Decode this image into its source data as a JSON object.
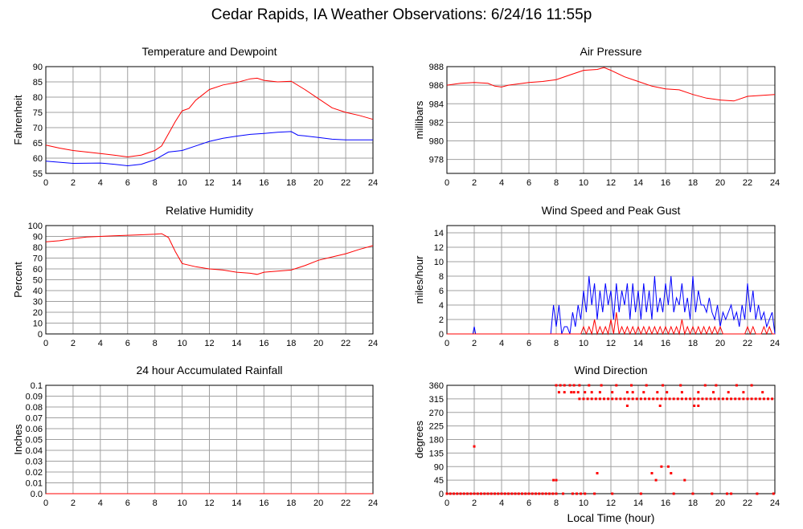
{
  "title": "Cedar Rapids, IA Weather Observations: 6/24/16 11:55p",
  "colors": {
    "red": "#ff0000",
    "blue": "#0000ff",
    "grid": "#a0a0a0"
  },
  "chart_data": [
    {
      "id": "temp",
      "type": "line",
      "title": "Temperature and Dewpoint",
      "xlabel": "",
      "ylabel": "Fahrenheit",
      "xlim": [
        0,
        24
      ],
      "ylim": [
        55,
        90
      ],
      "xticks": [
        0,
        2,
        4,
        6,
        8,
        10,
        12,
        14,
        16,
        18,
        20,
        22,
        24
      ],
      "yticks": [
        55,
        60,
        65,
        70,
        75,
        80,
        85,
        90
      ],
      "series": [
        {
          "color": "#ff0000",
          "x": [
            0,
            1,
            2,
            3,
            4,
            5,
            6,
            7,
            8,
            8.5,
            9,
            9.5,
            10,
            10.5,
            11,
            12,
            13,
            14,
            15,
            15.5,
            16,
            17,
            18,
            19,
            20,
            21,
            22,
            23,
            24
          ],
          "y": [
            64.3,
            63.3,
            62.5,
            62,
            61.5,
            61,
            60.4,
            61,
            62.5,
            64,
            68,
            72,
            75.5,
            76.3,
            79,
            82.5,
            84,
            84.8,
            86,
            86.2,
            85.5,
            85,
            85.2,
            82.5,
            79.5,
            76.5,
            75,
            74,
            72.7
          ]
        },
        {
          "color": "#0000ff",
          "x": [
            0,
            2,
            4,
            5,
            6,
            7,
            8,
            9,
            10,
            11,
            12,
            13,
            14,
            15,
            16,
            17,
            18,
            18.5,
            19,
            20,
            21,
            22,
            23,
            24
          ],
          "y": [
            59,
            58.3,
            58.4,
            58,
            57.5,
            58,
            59.5,
            62,
            62.5,
            64,
            65.5,
            66.5,
            67.2,
            67.8,
            68.1,
            68.5,
            68.7,
            67.5,
            67.3,
            66.8,
            66.2,
            66,
            66,
            66
          ]
        }
      ]
    },
    {
      "id": "pressure",
      "type": "line",
      "title": "Air Pressure",
      "xlabel": "",
      "ylabel": "millibars",
      "xlim": [
        0,
        24
      ],
      "ylim": [
        976.5,
        988
      ],
      "xticks": [
        0,
        2,
        4,
        6,
        8,
        10,
        12,
        14,
        16,
        18,
        20,
        22,
        24
      ],
      "yticks": [
        978,
        980,
        982,
        984,
        986,
        988
      ],
      "series": [
        {
          "color": "#ff0000",
          "x": [
            0,
            1,
            2,
            3,
            3.5,
            4,
            4.5,
            5,
            6,
            7,
            8,
            9,
            10,
            11,
            11.5,
            12,
            13,
            14,
            15,
            16,
            17,
            18,
            19,
            20,
            21,
            22,
            23,
            24
          ],
          "y": [
            986,
            986.2,
            986.3,
            986.2,
            985.9,
            985.8,
            986,
            986.1,
            986.3,
            986.4,
            986.6,
            987.1,
            987.6,
            987.7,
            987.9,
            987.6,
            986.9,
            986.4,
            985.9,
            985.6,
            985.5,
            985,
            984.6,
            984.4,
            984.3,
            984.8,
            984.9,
            985
          ]
        }
      ]
    },
    {
      "id": "humidity",
      "type": "line",
      "title": "Relative Humidity",
      "xlabel": "",
      "ylabel": "Percent",
      "xlim": [
        0,
        24
      ],
      "ylim": [
        0,
        100
      ],
      "xticks": [
        0,
        2,
        4,
        6,
        8,
        10,
        12,
        14,
        16,
        18,
        20,
        22,
        24
      ],
      "yticks": [
        0,
        10,
        20,
        30,
        40,
        50,
        60,
        70,
        80,
        90,
        100
      ],
      "series": [
        {
          "color": "#ff0000",
          "x": [
            0,
            1,
            2,
            3,
            4,
            5,
            6,
            7,
            8,
            8.5,
            9,
            9.5,
            10,
            11,
            12,
            13,
            14,
            15,
            15.5,
            16,
            17,
            18,
            19,
            20,
            21,
            22,
            23,
            24
          ],
          "y": [
            85,
            86,
            88,
            89.5,
            90,
            90.5,
            91,
            91.5,
            92,
            92.5,
            89,
            76,
            65,
            62,
            60,
            59,
            57,
            56,
            55,
            57,
            58,
            59,
            63,
            68,
            71,
            74,
            78,
            81.5
          ]
        }
      ]
    },
    {
      "id": "wind",
      "type": "line",
      "title": "Wind Speed and Peak Gust",
      "xlabel": "",
      "ylabel": "miles/hour",
      "xlim": [
        0,
        24
      ],
      "ylim": [
        0,
        15
      ],
      "xticks": [
        0,
        2,
        4,
        6,
        8,
        10,
        12,
        14,
        16,
        18,
        20,
        22,
        24
      ],
      "yticks": [
        0,
        2,
        4,
        6,
        8,
        10,
        12,
        14
      ],
      "series": [
        {
          "color": "#0000ff",
          "x": [
            0,
            1.9,
            2,
            2.1,
            7.6,
            7.8,
            8,
            8.2,
            8.4,
            8.6,
            8.8,
            9,
            9.2,
            9.4,
            9.6,
            9.8,
            10,
            10.2,
            10.4,
            10.6,
            10.8,
            11,
            11.2,
            11.4,
            11.6,
            11.8,
            12,
            12.2,
            12.4,
            12.6,
            12.8,
            13,
            13.2,
            13.4,
            13.6,
            13.8,
            14,
            14.2,
            14.4,
            14.6,
            14.8,
            15,
            15.2,
            15.4,
            15.6,
            15.8,
            16,
            16.2,
            16.4,
            16.6,
            16.8,
            17,
            17.2,
            17.4,
            17.6,
            17.8,
            18,
            18.2,
            18.4,
            18.6,
            18.8,
            19,
            19.2,
            19.4,
            19.6,
            19.8,
            20,
            20.2,
            20.4,
            20.6,
            20.8,
            21,
            21.2,
            21.4,
            21.6,
            21.8,
            22,
            22.2,
            22.4,
            22.6,
            22.8,
            23,
            23.2,
            23.4,
            23.6,
            23.8,
            24
          ],
          "y": [
            0,
            0,
            1,
            0,
            0,
            4,
            1,
            4,
            0,
            1,
            1,
            0,
            3,
            1,
            4,
            2,
            6,
            3,
            8,
            4,
            7,
            2,
            6,
            3,
            7,
            4,
            6,
            2,
            7,
            3,
            6,
            4,
            7,
            2,
            7,
            3,
            6,
            2,
            7,
            3,
            6,
            2,
            8,
            3,
            5,
            3,
            7,
            4,
            8,
            3,
            5,
            4,
            7,
            3,
            5,
            2,
            8,
            3,
            6,
            4,
            4,
            3,
            5,
            3,
            2,
            4,
            1,
            3,
            2,
            3,
            4,
            2,
            3,
            1,
            4,
            2,
            7,
            3,
            6,
            2,
            4,
            2,
            3,
            1,
            2,
            3,
            0
          ]
        },
        {
          "color": "#ff0000",
          "x": [
            0,
            9.8,
            10,
            10.2,
            10.4,
            10.6,
            10.8,
            11,
            11.2,
            11.4,
            11.6,
            11.8,
            12,
            12.2,
            12.4,
            12.6,
            12.8,
            13,
            13.2,
            13.4,
            13.6,
            13.8,
            14,
            14.2,
            14.4,
            14.6,
            14.8,
            15,
            15.2,
            15.4,
            15.6,
            15.8,
            16,
            16.2,
            16.4,
            16.6,
            16.8,
            17,
            17.2,
            17.4,
            17.6,
            17.8,
            18,
            18.2,
            18.4,
            18.6,
            18.8,
            19,
            19.2,
            19.4,
            19.6,
            19.8,
            20,
            20.2,
            20.4,
            20.6,
            20.8,
            21,
            21.2,
            21.4,
            21.6,
            21.8,
            22,
            22.2,
            22.4,
            22.6,
            22.8,
            23,
            23.2,
            23.4,
            23.6,
            23.8,
            24
          ],
          "y": [
            0,
            0,
            1,
            0,
            1,
            0,
            2,
            0,
            1,
            0,
            1,
            0,
            2,
            0,
            3,
            0,
            1,
            0,
            1,
            0,
            1,
            0,
            1,
            0,
            1,
            0,
            1,
            0,
            1,
            0,
            1,
            0,
            1,
            0,
            1,
            0,
            1,
            0,
            2,
            0,
            1,
            0,
            1,
            0,
            1,
            0,
            1,
            0,
            1,
            0,
            1,
            0,
            1,
            0,
            0,
            0,
            0,
            0,
            0,
            0,
            0,
            0,
            1,
            0,
            1,
            0,
            0,
            0,
            1,
            0,
            1,
            0,
            0
          ]
        }
      ]
    },
    {
      "id": "rain",
      "type": "line",
      "title": "24 hour Accumulated Rainfall",
      "xlabel": "",
      "ylabel": "Inches",
      "xlim": [
        0,
        24
      ],
      "ylim": [
        0,
        0.1
      ],
      "xticks": [
        0,
        2,
        4,
        6,
        8,
        10,
        12,
        14,
        16,
        18,
        20,
        22,
        24
      ],
      "yticks": [
        0,
        0.01,
        0.02,
        0.03,
        0.04,
        0.05,
        0.06,
        0.07,
        0.08,
        0.09,
        0.1
      ],
      "ytick_labels": [
        "0.0",
        "0.01",
        "0.02",
        "0.03",
        "0.04",
        "0.05",
        "0.06",
        "0.07",
        "0.08",
        "0.09",
        "0.1"
      ],
      "series": [
        {
          "color": "#ff0000",
          "x": [
            0,
            24
          ],
          "y": [
            0,
            0
          ]
        }
      ]
    },
    {
      "id": "direction",
      "type": "scatter",
      "title": "Wind Direction",
      "xlabel": "Local Time (hour)",
      "ylabel": "degrees",
      "xlim": [
        0,
        24
      ],
      "ylim": [
        0,
        360
      ],
      "xticks": [
        0,
        2,
        4,
        6,
        8,
        10,
        12,
        14,
        16,
        18,
        20,
        22,
        24
      ],
      "yticks": [
        0,
        45,
        90,
        135,
        180,
        225,
        270,
        315,
        360
      ],
      "series": [
        {
          "color": "#ff0000",
          "x": [
            0,
            0.25,
            0.5,
            0.75,
            1,
            1.25,
            1.5,
            1.75,
            2,
            2.25,
            2.5,
            2.75,
            3,
            3.25,
            3.5,
            3.75,
            4,
            4.25,
            4.5,
            4.75,
            5,
            5.25,
            5.5,
            5.75,
            6,
            6.25,
            6.5,
            6.75,
            7,
            7.25,
            7.5,
            7.75,
            8,
            8.5,
            9.2,
            9.5,
            9.8,
            10.1,
            10.8,
            12.1,
            14.2,
            16.6,
            18,
            19.4,
            20.5,
            20.8,
            22.7,
            23.9,
            2,
            7.8,
            8,
            11,
            15,
            15.3,
            15.7,
            16.2,
            16.4,
            17.4,
            8,
            8.3,
            8.6,
            9,
            9.3,
            9.7,
            10.4,
            11.3,
            12.4,
            13.5,
            14.6,
            15.8,
            17.1,
            18.9,
            19.7,
            21.2,
            22.3,
            8.2,
            8.6,
            9.1,
            9.3,
            9.6,
            10.1,
            10.6,
            11.2,
            12.1,
            13.2,
            13.6,
            14.4,
            15.4,
            16.1,
            17.2,
            18.4,
            19.5,
            20.6,
            21.7,
            23.1,
            13.2,
            15.6,
            18.1,
            18.4,
            9.7,
            10,
            10.3,
            10.6,
            10.9,
            11.2,
            11.5,
            11.8,
            12.1,
            12.4,
            12.7,
            13,
            13.3,
            13.6,
            13.9,
            14.2,
            14.5,
            14.8,
            15.1,
            15.4,
            15.7,
            16,
            16.3,
            16.6,
            16.9,
            17.2,
            17.5,
            17.8,
            18.1,
            18.4,
            18.7,
            19,
            19.3,
            19.6,
            19.9,
            20.2,
            20.5,
            20.8,
            21.1,
            21.4,
            21.7,
            22,
            22.3,
            22.6,
            22.9,
            23.2,
            23.5,
            23.8
          ],
          "y": [
            0,
            0,
            0,
            0,
            0,
            0,
            0,
            0,
            0,
            0,
            0,
            0,
            0,
            0,
            0,
            0,
            0,
            0,
            0,
            0,
            0,
            0,
            0,
            0,
            0,
            0,
            0,
            0,
            0,
            0,
            0,
            0,
            0,
            0,
            0,
            0,
            0,
            0,
            0,
            0,
            0,
            0,
            0,
            0,
            0,
            0,
            0,
            0,
            157,
            45,
            45,
            68,
            68,
            45,
            90,
            90,
            68,
            45,
            360,
            360,
            360,
            360,
            360,
            360,
            360,
            360,
            360,
            360,
            360,
            360,
            360,
            360,
            360,
            360,
            360,
            337,
            337,
            337,
            337,
            337,
            337,
            337,
            337,
            337,
            337,
            337,
            337,
            337,
            337,
            337,
            337,
            337,
            337,
            337,
            337,
            292,
            292,
            292,
            292,
            315,
            315,
            315,
            315,
            315,
            315,
            315,
            315,
            315,
            315,
            315,
            315,
            315,
            315,
            315,
            315,
            315,
            315,
            315,
            315,
            315,
            315,
            315,
            315,
            315,
            315,
            315,
            315,
            315,
            315,
            315,
            315,
            315,
            315,
            315,
            315,
            315,
            315,
            315,
            315,
            315,
            315,
            315,
            315,
            315,
            315,
            315,
            315
          ]
        }
      ]
    }
  ]
}
